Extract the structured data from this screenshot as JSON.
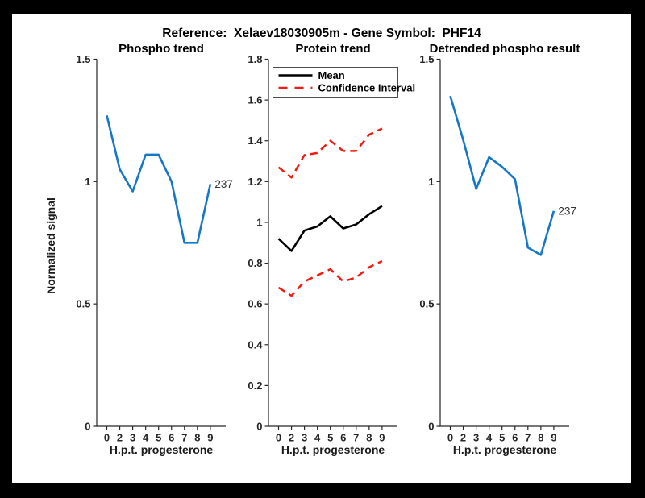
{
  "figure": {
    "title": "Reference:  Xelaev18030905m - Gene Symbol:  PHF14",
    "background_color": "#ffffff",
    "frame_color": "#000000"
  },
  "colors": {
    "blue": "#1577c8",
    "red": "#ee1c12",
    "black": "#000000",
    "axis": "#262626",
    "tick_text": "#262626",
    "annotation_text": "#333333",
    "legend_border": "#4d4d4d"
  },
  "chart_data": [
    {
      "type": "line",
      "title": "Phospho trend",
      "xlabel": "H.p.t. progesterone",
      "ylabel": "Normalized signal",
      "xticklabels": [
        "0",
        "2",
        "3",
        "4",
        "5",
        "6",
        "7",
        "8",
        "9"
      ],
      "ytick_labels": [
        "0",
        "0.5",
        "1",
        "1.5"
      ],
      "ylim": [
        0,
        1.5
      ],
      "grid": false,
      "series": [
        {
          "name": "phospho-signal",
          "color_key": "blue",
          "style": "solid",
          "width": 2.6,
          "values": [
            1.27,
            1.05,
            0.96,
            1.11,
            1.11,
            1.0,
            0.75,
            0.75,
            0.99
          ]
        }
      ],
      "end_label": "237"
    },
    {
      "type": "line",
      "title": "Protein trend",
      "xlabel": "H.p.t. progesterone",
      "ylabel": "",
      "xticklabels": [
        "0",
        "2",
        "3",
        "4",
        "5",
        "6",
        "7",
        "8",
        "9"
      ],
      "ytick_labels": [
        "0",
        "0.2",
        "0.4",
        "0.6",
        "0.8",
        "1",
        "1.2",
        "1.4",
        "1.6",
        "1.8"
      ],
      "ylim": [
        0,
        1.8
      ],
      "grid": false,
      "legend": {
        "position": "northwest",
        "entries": [
          {
            "label": "Mean",
            "color_key": "black",
            "style": "solid"
          },
          {
            "label": "Confidence Interval",
            "color_key": "red",
            "style": "dashed"
          }
        ]
      },
      "series": [
        {
          "name": "protein-mean",
          "color_key": "black",
          "style": "solid",
          "width": 2.6,
          "values": [
            0.92,
            0.86,
            0.96,
            0.98,
            1.03,
            0.97,
            0.99,
            1.04,
            1.08
          ]
        },
        {
          "name": "confidence-upper",
          "color_key": "red",
          "style": "dashed",
          "width": 2.5,
          "values": [
            1.27,
            1.22,
            1.33,
            1.34,
            1.4,
            1.35,
            1.35,
            1.43,
            1.46
          ]
        },
        {
          "name": "confidence-lower",
          "color_key": "red",
          "style": "dashed",
          "width": 2.5,
          "values": [
            0.68,
            0.64,
            0.71,
            0.74,
            0.77,
            0.71,
            0.73,
            0.78,
            0.81
          ]
        }
      ]
    },
    {
      "type": "line",
      "title": "Detrended phospho result",
      "xlabel": "H.p.t. progesterone",
      "ylabel": "",
      "xticklabels": [
        "0",
        "2",
        "3",
        "4",
        "5",
        "6",
        "7",
        "8",
        "9"
      ],
      "ytick_labels": [
        "0",
        "0.5",
        "1",
        "1.5"
      ],
      "ylim": [
        0,
        1.5
      ],
      "grid": false,
      "series": [
        {
          "name": "detrended-phospho-signal",
          "color_key": "blue",
          "style": "solid",
          "width": 2.6,
          "values": [
            1.35,
            1.17,
            0.97,
            1.1,
            1.06,
            1.01,
            0.73,
            0.7,
            0.88
          ]
        }
      ],
      "end_label": "237"
    }
  ]
}
